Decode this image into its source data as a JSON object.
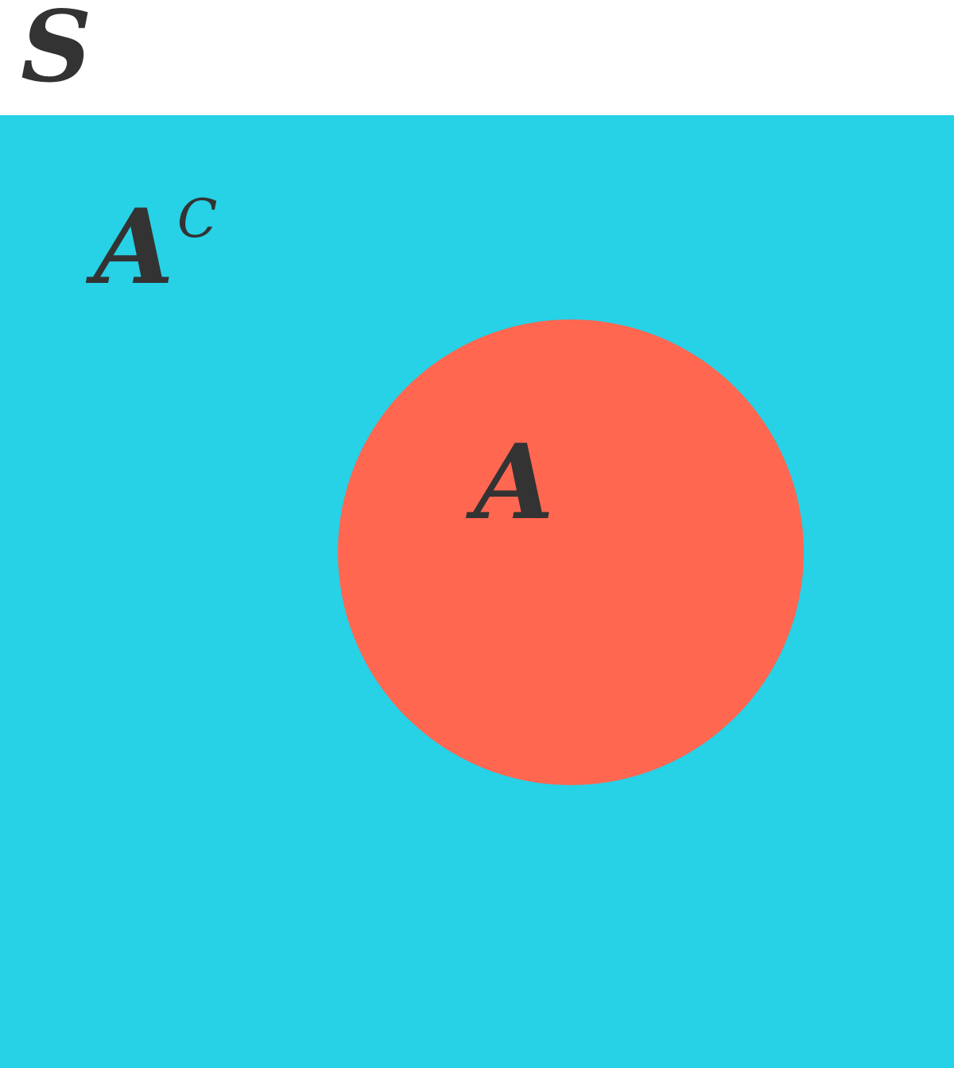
{
  "colors": {
    "universe": "#27d1e6",
    "set_a": "#ff6751",
    "text": "#333333",
    "background": "#ffffff"
  },
  "labels": {
    "universe": "S",
    "complement_base": "A",
    "complement_superscript": "C",
    "set": "A"
  }
}
